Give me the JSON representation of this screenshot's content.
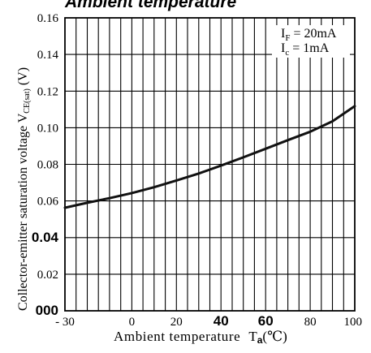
{
  "chart_data": {
    "type": "line",
    "title": "Ambient temperature",
    "xlabel_main": "Ambient temperature",
    "xlabel_symbol": "T",
    "xlabel_subscript": "a",
    "xlabel_unit": "(℃)",
    "ylabel": "Collector-emitter saturation voltage V",
    "ylabel_subscript": "CE(sat)",
    "ylabel_unit": "(V)",
    "xlim": [
      -30,
      100
    ],
    "ylim": [
      0,
      0.16
    ],
    "x_gridlines": [
      -25,
      -20,
      -15,
      -10,
      -5,
      0,
      5,
      10,
      15,
      20,
      25,
      30,
      35,
      40,
      45,
      50,
      55,
      60,
      65,
      70,
      75,
      80,
      85,
      90,
      95
    ],
    "y_gridlines": [
      0.02,
      0.04,
      0.06,
      0.08,
      0.1,
      0.12,
      0.14
    ],
    "x_ticks": [
      {
        "value": -30,
        "label": "- 30",
        "bold": false
      },
      {
        "value": 0,
        "label": "0",
        "bold": false
      },
      {
        "value": 20,
        "label": "20",
        "bold": false
      },
      {
        "value": 40,
        "label": "40",
        "bold": true
      },
      {
        "value": 60,
        "label": "60",
        "bold": true
      },
      {
        "value": 80,
        "label": "80",
        "bold": false
      },
      {
        "value": 100,
        "label": "100",
        "bold": false
      }
    ],
    "y_ticks": [
      {
        "value": 0,
        "label": "000",
        "bold": true
      },
      {
        "value": 0.02,
        "label": "0.02",
        "bold": false
      },
      {
        "value": 0.04,
        "label": "0.04",
        "bold": true
      },
      {
        "value": 0.06,
        "label": "0.06",
        "bold": false
      },
      {
        "value": 0.08,
        "label": "0.08",
        "bold": false
      },
      {
        "value": 0.1,
        "label": "0.10",
        "bold": false
      },
      {
        "value": 0.12,
        "label": "0.12",
        "bold": false
      },
      {
        "value": 0.14,
        "label": "0.14",
        "bold": false
      },
      {
        "value": 0.16,
        "label": "0.16",
        "bold": false
      }
    ],
    "annotations": [
      {
        "symbol": "I",
        "subscript": "F",
        "text": " = 20mA"
      },
      {
        "symbol": "I",
        "subscript": "c",
        "text": " = 1mA"
      }
    ],
    "series": [
      {
        "x": [
          -30,
          -20,
          -10,
          0,
          10,
          20,
          30,
          40,
          50,
          60,
          70,
          80,
          90,
          100
        ],
        "y": [
          0.0563,
          0.059,
          0.0615,
          0.0643,
          0.0675,
          0.0712,
          0.075,
          0.0793,
          0.0838,
          0.0885,
          0.0932,
          0.0978,
          0.1035,
          0.1118
        ]
      }
    ],
    "grid": true,
    "colors": {
      "line": "#111111",
      "grid": "#000000",
      "background": "#ffffff"
    }
  }
}
